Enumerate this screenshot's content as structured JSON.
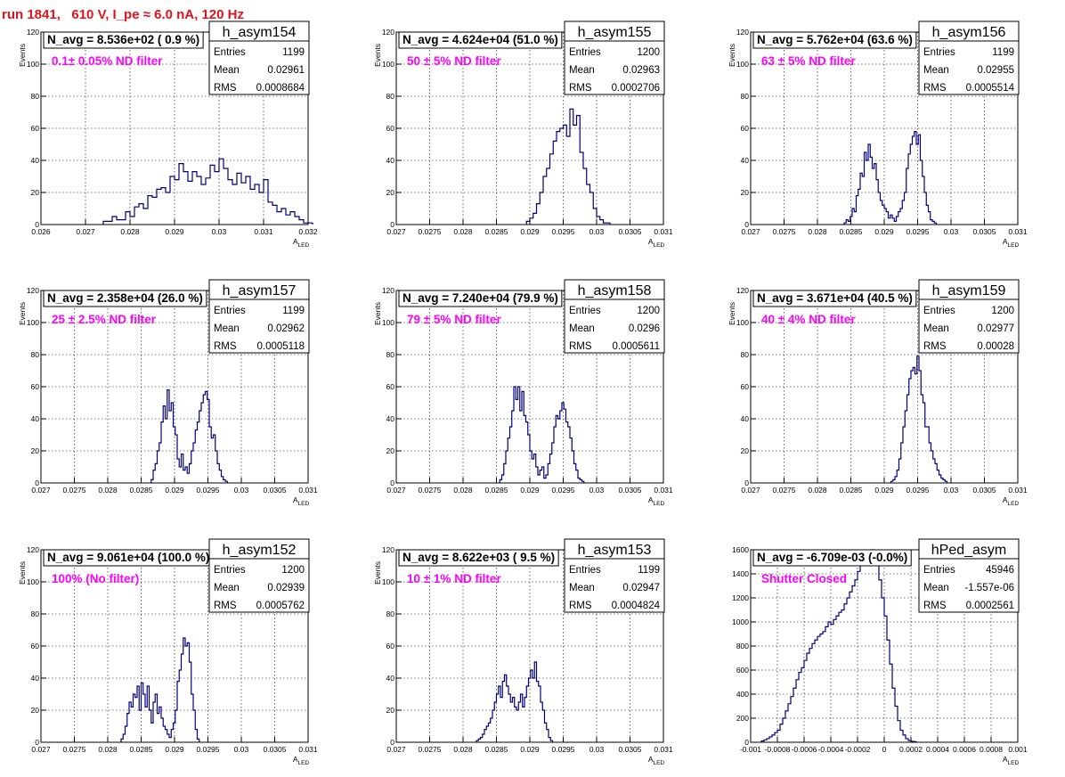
{
  "run_title": "run 1841,   610 V, I_pe ≈ 6.0 nA, 120 Hz",
  "chart_data": [
    {
      "type": "histogram",
      "name": "h_asym154",
      "title": "N_avg = 8.536e+02 ( 0.9 %)",
      "annotation": "0.1± 0.05% ND filter",
      "xlabel": "A",
      "xlabel_sub": "LED",
      "ylabel": "Events",
      "xlim": [
        0.026,
        0.032
      ],
      "ylim": [
        0,
        120
      ],
      "xticks": [
        0.026,
        0.027,
        0.028,
        0.029,
        0.03,
        0.031,
        0.032
      ],
      "xtick_labels": [
        "0.026",
        "0.027",
        "0.028",
        "0.029",
        "0.03",
        "0.031",
        "0.032"
      ],
      "yticks": [
        0,
        20,
        40,
        60,
        80,
        100,
        120
      ],
      "stats": [
        [
          "Entries",
          "1199"
        ],
        [
          "Mean",
          "0.02961"
        ],
        [
          "RMS",
          "0.0008684"
        ]
      ],
      "bin_start": 0.0274,
      "bin_width": 0.0001,
      "values": [
        2,
        2,
        5,
        3,
        3,
        8,
        5,
        11,
        13,
        10,
        18,
        17,
        22,
        23,
        20,
        30,
        28,
        38,
        33,
        27,
        33,
        30,
        25,
        29,
        37,
        33,
        41,
        35,
        28,
        25,
        32,
        26,
        30,
        22,
        25,
        20,
        28,
        14,
        12,
        8,
        10,
        6,
        8,
        5,
        3,
        1,
        1
      ]
    },
    {
      "type": "histogram",
      "name": "h_asym155",
      "title": "N_avg = 4.624e+04 (51.0 %)",
      "annotation": "50 ± 5% ND filter",
      "xlabel": "A",
      "xlabel_sub": "LED",
      "ylabel": "Events",
      "xlim": [
        0.027,
        0.031
      ],
      "ylim": [
        0,
        120
      ],
      "xticks": [
        0.027,
        0.0275,
        0.028,
        0.0285,
        0.029,
        0.0295,
        0.03,
        0.0305,
        0.031
      ],
      "xtick_labels": [
        "0.027",
        "0.0275",
        "0.028",
        "0.0285",
        "0.029",
        "0.0295",
        "0.03",
        "0.0305",
        "0.031"
      ],
      "yticks": [
        0,
        20,
        40,
        60,
        80,
        100,
        120
      ],
      "stats": [
        [
          "Entries",
          "1200"
        ],
        [
          "Mean",
          "0.02963"
        ],
        [
          "RMS",
          "0.0002706"
        ]
      ],
      "bin_start": 0.02895,
      "bin_width": 5e-05,
      "values": [
        2,
        4,
        7,
        13,
        20,
        30,
        35,
        44,
        52,
        58,
        60,
        62,
        55,
        72,
        62,
        68,
        45,
        35,
        25,
        20,
        10,
        5,
        3,
        1,
        1
      ]
    },
    {
      "type": "histogram",
      "name": "h_asym156",
      "title": "N_avg = 5.762e+04 (63.6 %)",
      "annotation": "63 ± 5% ND filter",
      "xlabel": "A",
      "xlabel_sub": "LED",
      "ylabel": "Events",
      "xlim": [
        0.027,
        0.031
      ],
      "ylim": [
        0,
        120
      ],
      "xticks": [
        0.027,
        0.0275,
        0.028,
        0.0285,
        0.029,
        0.0295,
        0.03,
        0.0305,
        0.031
      ],
      "xtick_labels": [
        "0.027",
        "0.0275",
        "0.028",
        "0.0285",
        "0.029",
        "0.0295",
        "0.03",
        "0.0305",
        "0.031"
      ],
      "yticks": [
        0,
        20,
        40,
        60,
        80,
        100,
        120
      ],
      "stats": [
        [
          "Entries",
          "1199"
        ],
        [
          "Mean",
          "0.02955"
        ],
        [
          "RMS",
          "0.0005514"
        ]
      ],
      "bin_start": 0.0284,
      "bin_width": 3e-05,
      "values": [
        1,
        3,
        2,
        5,
        10,
        8,
        18,
        22,
        32,
        30,
        45,
        40,
        50,
        42,
        35,
        38,
        28,
        20,
        15,
        12,
        10,
        8,
        4,
        6,
        4,
        2,
        5,
        8,
        10,
        15,
        20,
        35,
        44,
        50,
        55,
        58,
        50,
        56,
        40,
        30,
        20,
        12,
        8,
        3,
        2,
        1
      ]
    },
    {
      "type": "histogram",
      "name": "h_asym157",
      "title": "N_avg = 2.358e+04 (26.0 %)",
      "annotation": "25 ± 2.5% ND filter",
      "xlabel": "A",
      "xlabel_sub": "LED",
      "ylabel": "Events",
      "xlim": [
        0.027,
        0.031
      ],
      "ylim": [
        0,
        120
      ],
      "xticks": [
        0.027,
        0.0275,
        0.028,
        0.0285,
        0.029,
        0.0295,
        0.03,
        0.0305,
        0.031
      ],
      "xtick_labels": [
        "0.027",
        "0.0275",
        "0.028",
        "0.0285",
        "0.029",
        "0.0295",
        "0.03",
        "0.0305",
        "0.031"
      ],
      "yticks": [
        0,
        20,
        40,
        60,
        80,
        100,
        120
      ],
      "stats": [
        [
          "Entries",
          "1199"
        ],
        [
          "Mean",
          "0.02962"
        ],
        [
          "RMS",
          "0.0005118"
        ]
      ],
      "bin_start": 0.02865,
      "bin_width": 3e-05,
      "values": [
        2,
        8,
        12,
        20,
        25,
        38,
        48,
        40,
        58,
        45,
        50,
        35,
        30,
        15,
        10,
        18,
        8,
        10,
        6,
        12,
        20,
        25,
        33,
        38,
        45,
        50,
        55,
        57,
        52,
        35,
        28,
        30,
        20,
        12,
        8,
        4,
        2,
        1
      ]
    },
    {
      "type": "histogram",
      "name": "h_asym158",
      "title": "N_avg = 7.240e+04 (79.9 %)",
      "annotation": "79 ± 5% ND filter",
      "xlabel": "A",
      "xlabel_sub": "LED",
      "ylabel": "Events",
      "xlim": [
        0.027,
        0.031
      ],
      "ylim": [
        0,
        120
      ],
      "xticks": [
        0.027,
        0.0275,
        0.028,
        0.0285,
        0.029,
        0.0295,
        0.03,
        0.0305,
        0.031
      ],
      "xtick_labels": [
        "0.027",
        "0.0275",
        "0.028",
        "0.0285",
        "0.029",
        "0.0295",
        "0.03",
        "0.0305",
        "0.031"
      ],
      "yticks": [
        0,
        20,
        40,
        60,
        80,
        100,
        120
      ],
      "stats": [
        [
          "Entries",
          "1200"
        ],
        [
          "Mean",
          "0.0296"
        ],
        [
          "RMS",
          "0.0005611"
        ]
      ],
      "bin_start": 0.02855,
      "bin_width": 3e-05,
      "values": [
        2,
        5,
        12,
        20,
        28,
        35,
        45,
        60,
        52,
        60,
        45,
        57,
        42,
        38,
        30,
        20,
        15,
        18,
        10,
        5,
        8,
        10,
        3,
        5,
        12,
        18,
        25,
        35,
        42,
        40,
        45,
        50,
        46,
        38,
        35,
        28,
        20,
        12,
        8,
        3,
        2,
        1
      ]
    },
    {
      "type": "histogram",
      "name": "h_asym159",
      "title": "N_avg = 3.671e+04 (40.5 %)",
      "annotation": "40 ± 4% ND filter",
      "xlabel": "A",
      "xlabel_sub": "LED",
      "ylabel": "Events",
      "xlim": [
        0.027,
        0.031
      ],
      "ylim": [
        0,
        120
      ],
      "xticks": [
        0.027,
        0.0275,
        0.028,
        0.0285,
        0.029,
        0.0295,
        0.03,
        0.0305,
        0.031
      ],
      "xtick_labels": [
        "0.027",
        "0.0275",
        "0.028",
        "0.0285",
        "0.029",
        "0.0295",
        "0.03",
        "0.0305",
        "0.031"
      ],
      "yticks": [
        0,
        20,
        40,
        60,
        80,
        100,
        120
      ],
      "stats": [
        [
          "Entries",
          "1200"
        ],
        [
          "Mean",
          "0.02977"
        ],
        [
          "RMS",
          "0.00028"
        ]
      ],
      "bin_start": 0.0291,
      "bin_width": 3e-05,
      "values": [
        1,
        2,
        4,
        8,
        15,
        25,
        35,
        45,
        55,
        65,
        70,
        72,
        68,
        79,
        70,
        55,
        50,
        35,
        35,
        25,
        20,
        15,
        12,
        8,
        5,
        3,
        2,
        1
      ]
    },
    {
      "type": "histogram",
      "name": "h_asym152",
      "title": "N_avg = 9.061e+04 (100.0 %)",
      "annotation": "100% (No filter)",
      "xlabel": "A",
      "xlabel_sub": "LED",
      "ylabel": "Events",
      "xlim": [
        0.027,
        0.031
      ],
      "ylim": [
        0,
        120
      ],
      "xticks": [
        0.027,
        0.0275,
        0.028,
        0.0285,
        0.029,
        0.0295,
        0.03,
        0.0305,
        0.031
      ],
      "xtick_labels": [
        "0.027",
        "0.0275",
        "0.028",
        "0.0285",
        "0.029",
        "0.0295",
        "0.03",
        "0.0305",
        "0.031"
      ],
      "yticks": [
        0,
        20,
        40,
        60,
        80,
        100,
        120
      ],
      "stats": [
        [
          "Entries",
          "1200"
        ],
        [
          "Mean",
          "0.02939"
        ],
        [
          "RMS",
          "0.0005762"
        ]
      ],
      "bin_start": 0.0282,
      "bin_width": 3e-05,
      "values": [
        2,
        5,
        10,
        18,
        25,
        22,
        30,
        28,
        35,
        20,
        37,
        30,
        22,
        35,
        20,
        12,
        25,
        30,
        18,
        22,
        15,
        10,
        8,
        5,
        3,
        8,
        12,
        20,
        38,
        45,
        55,
        65,
        60,
        62,
        50,
        30,
        20,
        8,
        2
      ]
    },
    {
      "type": "histogram",
      "name": "h_asym153",
      "title": "N_avg = 8.622e+03 ( 9.5 %)",
      "annotation": "10 ± 1% ND filter",
      "xlabel": "A",
      "xlabel_sub": "LED",
      "ylabel": "Events",
      "xlim": [
        0.027,
        0.031
      ],
      "ylim": [
        0,
        120
      ],
      "xticks": [
        0.027,
        0.0275,
        0.028,
        0.0285,
        0.029,
        0.0295,
        0.03,
        0.0305,
        0.031
      ],
      "xtick_labels": [
        "0.027",
        "0.0275",
        "0.028",
        "0.0285",
        "0.029",
        "0.0295",
        "0.03",
        "0.0305",
        "0.031"
      ],
      "yticks": [
        0,
        20,
        40,
        60,
        80,
        100,
        120
      ],
      "stats": [
        [
          "Entries",
          "1199"
        ],
        [
          "Mean",
          "0.02947"
        ],
        [
          "RMS",
          "0.0004824"
        ]
      ],
      "bin_start": 0.0282,
      "bin_width": 3e-05,
      "values": [
        1,
        2,
        3,
        5,
        8,
        10,
        12,
        15,
        20,
        25,
        30,
        35,
        28,
        38,
        42,
        35,
        30,
        25,
        28,
        22,
        20,
        25,
        30,
        22,
        28,
        35,
        40,
        45,
        40,
        50,
        38,
        35,
        25,
        20,
        12,
        8,
        3,
        1
      ]
    },
    {
      "type": "histogram",
      "name": "hPed_asym",
      "title": "N_avg = -6.709e-03 (-0.0%)",
      "annotation": "Shutter Closed",
      "xlabel": "A",
      "xlabel_sub": "LED",
      "ylabel": "",
      "xlim": [
        -0.001,
        0.001
      ],
      "ylim": [
        0,
        1600
      ],
      "xticks": [
        -0.001,
        -0.0008,
        -0.0006,
        -0.0004,
        -0.0002,
        0,
        0.0002,
        0.0004,
        0.0006,
        0.0008,
        0.001
      ],
      "xtick_labels": [
        "-0.001",
        "-0.0008",
        "-0.0006",
        "-0.0004",
        "-0.0002",
        "0",
        "0.0002",
        "0.0004",
        "0.0006",
        "0.0008",
        "0.001"
      ],
      "yticks": [
        0,
        200,
        400,
        600,
        800,
        1000,
        1200,
        1400,
        1600
      ],
      "stats": [
        [
          "Entries",
          "45946"
        ],
        [
          "Mean",
          "-1.557e-06"
        ],
        [
          "RMS",
          "0.0002561"
        ]
      ],
      "bin_start": -0.00092,
      "bin_width": 2e-05,
      "values": [
        10,
        20,
        30,
        45,
        60,
        80,
        100,
        150,
        200,
        260,
        320,
        380,
        450,
        520,
        580,
        620,
        680,
        740,
        780,
        820,
        850,
        880,
        900,
        920,
        960,
        1000,
        980,
        1020,
        1050,
        1080,
        1100,
        1150,
        1200,
        1250,
        1300,
        1350,
        1420,
        1480,
        1520,
        1560,
        1580,
        1600,
        1550,
        1480,
        1350,
        1200,
        1050,
        850,
        650,
        450,
        300,
        180,
        100,
        60,
        30,
        15,
        8,
        5
      ]
    }
  ]
}
